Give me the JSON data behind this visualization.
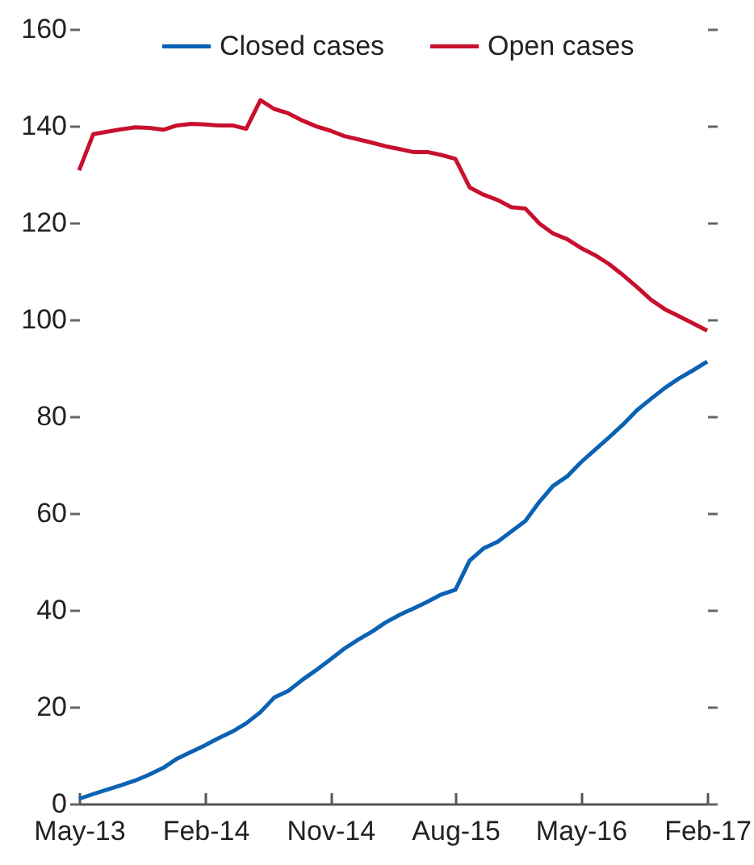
{
  "chart_data": {
    "type": "line",
    "x": [
      "2013-05",
      "2013-06",
      "2013-07",
      "2013-08",
      "2013-09",
      "2013-10",
      "2013-11",
      "2013-12",
      "2014-01",
      "2014-02",
      "2014-03",
      "2014-04",
      "2014-05",
      "2014-06",
      "2014-07",
      "2014-08",
      "2014-09",
      "2014-10",
      "2014-11",
      "2014-12",
      "2015-01",
      "2015-02",
      "2015-03",
      "2015-04",
      "2015-05",
      "2015-06",
      "2015-07",
      "2015-08",
      "2015-09",
      "2015-10",
      "2015-11",
      "2015-12",
      "2016-01",
      "2016-02",
      "2016-03",
      "2016-04",
      "2016-05",
      "2016-06",
      "2016-07",
      "2016-08",
      "2016-09",
      "2016-10",
      "2016-11",
      "2016-12",
      "2017-01",
      "2017-02"
    ],
    "series": [
      {
        "name": "Closed cases",
        "color": "#0b62b3",
        "values": [
          1.0,
          2.0,
          2.9,
          3.8,
          4.8,
          6.0,
          7.4,
          9.3,
          10.7,
          12.1,
          13.5,
          14.9,
          16.6,
          18.9,
          21.9,
          23.3,
          25.6,
          27.6,
          29.8,
          32.0,
          33.9,
          35.6,
          37.4,
          39.0,
          40.3,
          41.7,
          43.2,
          44.2,
          50.2,
          52.7,
          54.1,
          56.2,
          58.4,
          62.4,
          65.6,
          67.6,
          70.5,
          73.1,
          75.6,
          78.3,
          81.3,
          83.6,
          85.9,
          87.8,
          89.5,
          91.3
        ]
      },
      {
        "name": "Open cases",
        "color": "#c8102e",
        "values": [
          130.8,
          138.3,
          138.8,
          139.3,
          139.7,
          139.6,
          139.2,
          140.1,
          140.4,
          140.3,
          140.1,
          140.1,
          139.4,
          145.3,
          143.5,
          142.6,
          141.1,
          139.9,
          139.0,
          137.9,
          137.2,
          136.5,
          135.8,
          135.2,
          134.6,
          134.6,
          134.0,
          133.2,
          127.3,
          125.8,
          124.7,
          123.2,
          122.9,
          119.8,
          117.8,
          116.6,
          114.8,
          113.3,
          111.5,
          109.2,
          106.7,
          104.1,
          102.1,
          100.7,
          99.2,
          97.7
        ]
      }
    ],
    "xlim": [
      "2013-05",
      "2017-02"
    ],
    "xticks": [
      {
        "value": "2013-05",
        "label": "May-13"
      },
      {
        "value": "2014-02",
        "label": "Feb-14"
      },
      {
        "value": "2014-11",
        "label": "Nov-14"
      },
      {
        "value": "2015-08",
        "label": "Aug-15"
      },
      {
        "value": "2016-05",
        "label": "May-16"
      },
      {
        "value": "2017-02",
        "label": "Feb-17"
      }
    ],
    "ylim": [
      0,
      160
    ],
    "yticks": [
      0,
      20,
      40,
      60,
      80,
      100,
      120,
      140,
      160
    ],
    "legend": "top"
  }
}
